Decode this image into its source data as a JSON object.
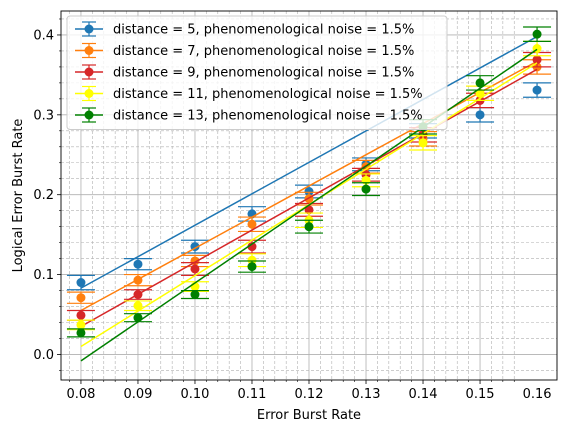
{
  "chart_data": {
    "type": "scatter",
    "xlabel": "Error Burst Rate",
    "ylabel": "Logical Error Burst Rate",
    "xlim": [
      0.0765,
      0.1635
    ],
    "ylim": [
      -0.032,
      0.43
    ],
    "x_ticks": [
      "0.08",
      "0.09",
      "0.10",
      "0.11",
      "0.12",
      "0.13",
      "0.14",
      "0.15",
      "0.16"
    ],
    "y_ticks": [
      "0.0",
      "0.1",
      "0.2",
      "0.3",
      "0.4"
    ],
    "grid": true,
    "minor_grid": true,
    "legend_position": "top-left",
    "x": [
      0.08,
      0.09,
      0.1,
      0.11,
      0.12,
      0.13,
      0.14,
      0.15,
      0.16
    ],
    "series": [
      {
        "name": "distance = 5, phenomenological noise = 1.5%",
        "color": "#1f77b4",
        "values": [
          0.09,
          0.113,
          0.135,
          0.176,
          0.204,
          0.238,
          0.28,
          0.3,
          0.331
        ],
        "errors": [
          0.009,
          0.007,
          0.008,
          0.009,
          0.008,
          0.008,
          0.009,
          0.009,
          0.009
        ],
        "fit": [
          0.083,
          0.398
        ]
      },
      {
        "name": "distance = 7, phenomenological noise = 1.5%",
        "color": "#ff7f0e",
        "values": [
          0.071,
          0.093,
          0.117,
          0.163,
          0.195,
          0.235,
          0.27,
          0.327,
          0.36
        ],
        "errors": [
          0.007,
          0.007,
          0.007,
          0.009,
          0.008,
          0.008,
          0.009,
          0.009,
          0.009
        ],
        "fit": [
          0.055,
          0.367
        ]
      },
      {
        "name": "distance = 9, phenomenological noise = 1.5%",
        "color": "#d62728",
        "values": [
          0.049,
          0.075,
          0.107,
          0.135,
          0.181,
          0.225,
          0.275,
          0.318,
          0.369
        ],
        "errors": [
          0.006,
          0.006,
          0.008,
          0.008,
          0.008,
          0.008,
          0.009,
          0.009,
          0.009
        ],
        "fit": [
          0.035,
          0.357
        ]
      },
      {
        "name": "distance = 11, phenomenological noise = 1.5%",
        "color": "#ffff00",
        "values": [
          0.037,
          0.061,
          0.085,
          0.118,
          0.168,
          0.218,
          0.265,
          0.327,
          0.383
        ],
        "errors": [
          0.006,
          0.006,
          0.006,
          0.008,
          0.009,
          0.008,
          0.009,
          0.009,
          0.009
        ],
        "fit": [
          0.01,
          0.365
        ]
      },
      {
        "name": "distance = 13, phenomenological noise = 1.5%",
        "color": "#008000",
        "values": [
          0.027,
          0.046,
          0.075,
          0.11,
          0.16,
          0.207,
          0.285,
          0.34,
          0.401
        ],
        "errors": [
          0.005,
          0.005,
          0.005,
          0.007,
          0.008,
          0.008,
          0.009,
          0.009,
          0.009
        ],
        "fit": [
          -0.008,
          0.382
        ]
      }
    ]
  }
}
